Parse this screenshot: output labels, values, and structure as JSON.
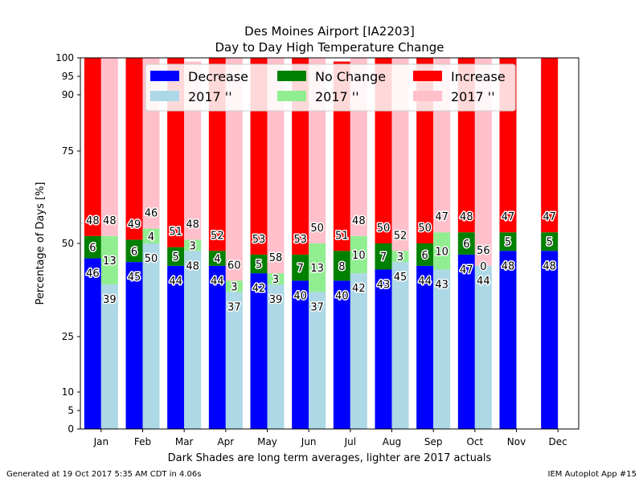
{
  "chart_data": {
    "type": "bar",
    "title_line1": "Des Moines Airport [IA2203]",
    "title_line2": "Day to Day High Temperature Change",
    "ylabel": "Percentage of Days [%]",
    "xlabel": "Dark Shades are long term averages, lighter are 2017 actuals",
    "ylim": [
      0,
      100
    ],
    "yticks": [
      0,
      5,
      10,
      25,
      50,
      75,
      90,
      95,
      100
    ],
    "categories": [
      "Jan",
      "Feb",
      "Mar",
      "Apr",
      "May",
      "Jun",
      "Jul",
      "Aug",
      "Sep",
      "Oct",
      "Nov",
      "Dec"
    ],
    "legend_placement": "top",
    "legend": [
      "Decrease",
      "No Change",
      "Increase",
      "2017 ''",
      "2017 ''",
      "2017 ''"
    ],
    "colors": {
      "decrease": "#0000ff",
      "no_change": "#008000",
      "increase": "#ff0000",
      "decrease_2017": "#add8e6",
      "no_change_2017": "#90ee90",
      "increase_2017": "#ffc0cb"
    },
    "series": [
      {
        "name": "Decrease",
        "values": [
          46,
          45,
          44,
          44,
          42,
          40,
          40,
          43,
          44,
          47,
          48,
          48
        ]
      },
      {
        "name": "No Change",
        "values": [
          6,
          6,
          5,
          4,
          5,
          7,
          8,
          7,
          6,
          6,
          5,
          5
        ]
      },
      {
        "name": "Increase",
        "values": [
          48,
          49,
          51,
          52,
          53,
          53,
          51,
          50,
          50,
          48,
          47,
          47
        ]
      },
      {
        "name": "2017 ''",
        "values": [
          39,
          50,
          48,
          37,
          39,
          37,
          42,
          45,
          43,
          44,
          null,
          null
        ]
      },
      {
        "name": "2017 ''",
        "values": [
          13,
          4,
          3,
          3,
          3,
          13,
          10,
          3,
          10,
          0,
          null,
          null
        ]
      },
      {
        "name": "2017 ''",
        "values": [
          48,
          46,
          48,
          60,
          58,
          50,
          48,
          52,
          47,
          56,
          null,
          null
        ]
      }
    ]
  },
  "footer": {
    "left": "Generated at 19 Oct 2017 5:35 AM CDT in 4.06s",
    "right": "IEM Autoplot App #15"
  }
}
